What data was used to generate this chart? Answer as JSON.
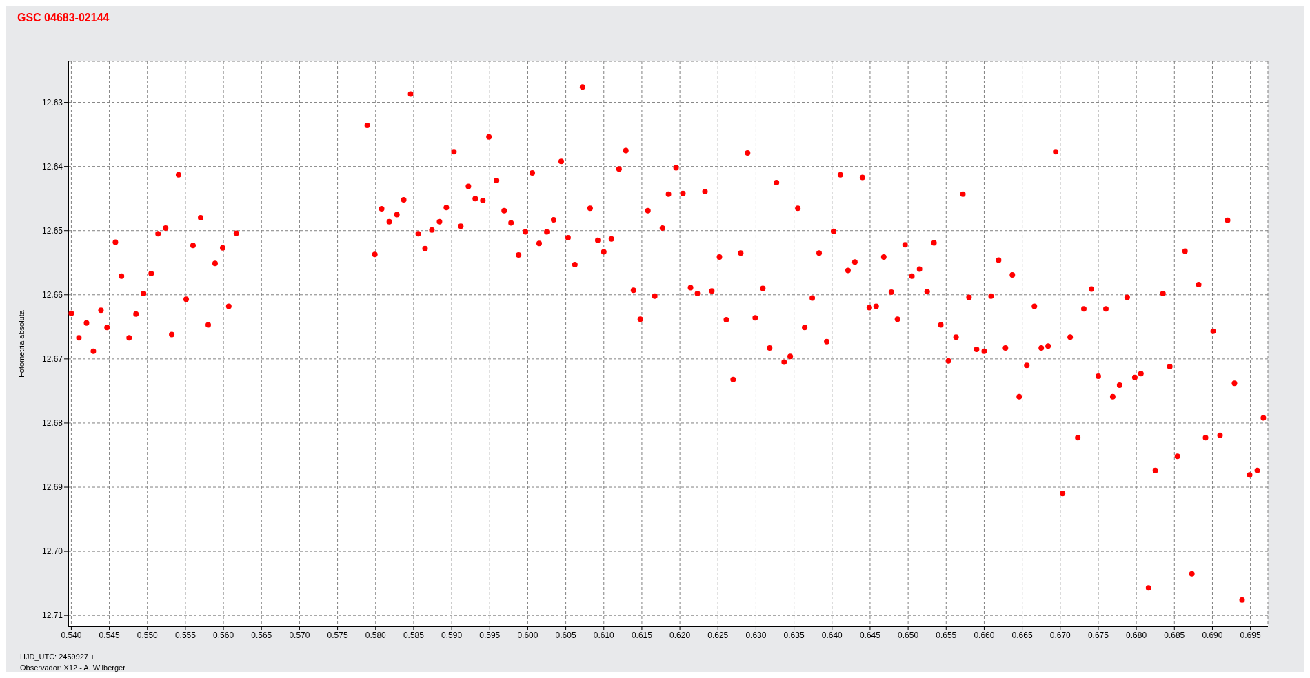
{
  "chart_data": {
    "type": "scatter",
    "title": "GSC 04683-02144",
    "ylabel": "Fotometría absoluta",
    "annotations": [
      "HJD_UTC: 2459927 +",
      "Observador: X12 - A. Wilberger"
    ],
    "x": [
      0.54,
      0.541,
      0.542,
      0.5429,
      0.5439,
      0.5447,
      0.5458,
      0.5466,
      0.5476,
      0.5485,
      0.5495,
      0.5505,
      0.5514,
      0.5524,
      0.5532,
      0.5541,
      0.5551,
      0.556,
      0.557,
      0.558,
      0.5589,
      0.5599,
      0.5607,
      0.5617,
      0.5789,
      0.5799,
      0.5808,
      0.5818,
      0.5828,
      0.5837,
      0.5846,
      0.5856,
      0.5865,
      0.5874,
      0.5884,
      0.5893,
      0.5903,
      0.5912,
      0.5922,
      0.5931,
      0.5941,
      0.5949,
      0.5959,
      0.5969,
      0.5978,
      0.5988,
      0.5997,
      0.6006,
      0.6015,
      0.6025,
      0.6034,
      0.6044,
      0.6053,
      0.6062,
      0.6072,
      0.6082,
      0.6092,
      0.61,
      0.611,
      0.612,
      0.6129,
      0.6139,
      0.6148,
      0.6158,
      0.6167,
      0.6177,
      0.6185,
      0.6195,
      0.6204,
      0.6214,
      0.6223,
      0.6233,
      0.6242,
      0.6252,
      0.6261,
      0.627,
      0.628,
      0.6289,
      0.6299,
      0.6309,
      0.6318,
      0.6327,
      0.6337,
      0.6345,
      0.6355,
      0.6364,
      0.6374,
      0.6383,
      0.6393,
      0.6402,
      0.6411,
      0.6421,
      0.643,
      0.644,
      0.6449,
      0.6458,
      0.6468,
      0.6478,
      0.6486,
      0.6496,
      0.6505,
      0.6515,
      0.6525,
      0.6534,
      0.6543,
      0.6553,
      0.6563,
      0.6572,
      0.658,
      0.659,
      0.66,
      0.6609,
      0.6619,
      0.6628,
      0.6637,
      0.6646,
      0.6656,
      0.6666,
      0.6675,
      0.6684,
      0.6694,
      0.6703,
      0.6713,
      0.6723,
      0.6731,
      0.6741,
      0.675,
      0.676,
      0.6769,
      0.6778,
      0.6788,
      0.6798,
      0.6806,
      0.6816,
      0.6825,
      0.6835,
      0.6844,
      0.6854,
      0.6864,
      0.6873,
      0.6882,
      0.6891,
      0.6901,
      0.691,
      0.692,
      0.6929,
      0.6939,
      0.6949,
      0.6959,
      0.6967
    ],
    "series": [
      {
        "color": "#ff0000",
        "values": [
          12.6629,
          12.6667,
          12.6644,
          12.6688,
          12.6624,
          12.6651,
          12.6518,
          12.6571,
          12.6667,
          12.663,
          12.6598,
          12.6567,
          12.6505,
          12.6496,
          12.6662,
          12.6413,
          12.6607,
          12.6523,
          12.648,
          12.6647,
          12.6551,
          12.6527,
          12.6618,
          12.6504,
          12.6336,
          12.6537,
          12.6466,
          12.6486,
          12.6475,
          12.6452,
          12.6287,
          12.6505,
          12.6528,
          12.6499,
          12.6486,
          12.6464,
          12.6377,
          12.6493,
          12.6431,
          12.645,
          12.6453,
          12.6354,
          12.6422,
          12.6469,
          12.6488,
          12.6538,
          12.6502,
          12.641,
          12.652,
          12.6502,
          12.6483,
          12.6392,
          12.6511,
          12.6553,
          12.6276,
          12.6465,
          12.6515,
          12.6533,
          12.6513,
          12.6404,
          12.6375,
          12.6593,
          12.6638,
          12.6469,
          12.6602,
          12.6496,
          12.6443,
          12.6402,
          12.6442,
          12.6589,
          12.6598,
          12.6439,
          12.6594,
          12.6541,
          12.6639,
          12.6732,
          12.6535,
          12.6379,
          12.6636,
          12.659,
          12.6683,
          12.6425,
          12.6705,
          12.6696,
          12.6465,
          12.6651,
          12.6605,
          12.6535,
          12.6673,
          12.6501,
          12.6413,
          12.6562,
          12.6549,
          12.6417,
          12.662,
          12.6618,
          12.6541,
          12.6596,
          12.6638,
          12.6522,
          12.6571,
          12.656,
          12.6595,
          12.6519,
          12.6647,
          12.6703,
          12.6666,
          12.6443,
          12.6604,
          12.6685,
          12.6688,
          12.6602,
          12.6546,
          12.6683,
          12.6569,
          12.6759,
          12.671,
          12.6618,
          12.6683,
          12.668,
          12.6377,
          12.691,
          12.6666,
          12.6823,
          12.6622,
          12.6591,
          12.6727,
          12.6622,
          12.6759,
          12.6741,
          12.6604,
          12.6729,
          12.6723,
          12.7057,
          12.6874,
          12.6598,
          12.6712,
          12.6852,
          12.6532,
          12.7035,
          12.6584,
          12.6823,
          12.6657,
          12.6819,
          12.6484,
          12.6738,
          12.7076,
          12.6881,
          12.6874,
          12.6792
        ]
      }
    ],
    "xlim": [
      0.5396,
      0.6973
    ],
    "xticks": [
      {
        "value": 0.54,
        "label": "0.540"
      },
      {
        "value": 0.545,
        "label": "0.545"
      },
      {
        "value": 0.55,
        "label": "0.550"
      },
      {
        "value": 0.555,
        "label": "0.555"
      },
      {
        "value": 0.56,
        "label": "0.560"
      },
      {
        "value": 0.565,
        "label": "0.565"
      },
      {
        "value": 0.57,
        "label": "0.570"
      },
      {
        "value": 0.575,
        "label": "0.575"
      },
      {
        "value": 0.58,
        "label": "0.580"
      },
      {
        "value": 0.585,
        "label": "0.585"
      },
      {
        "value": 0.59,
        "label": "0.590"
      },
      {
        "value": 0.595,
        "label": "0.595"
      },
      {
        "value": 0.6,
        "label": "0.600"
      },
      {
        "value": 0.605,
        "label": "0.605"
      },
      {
        "value": 0.61,
        "label": "0.610"
      },
      {
        "value": 0.615,
        "label": "0.615"
      },
      {
        "value": 0.62,
        "label": "0.620"
      },
      {
        "value": 0.625,
        "label": "0.625"
      },
      {
        "value": 0.63,
        "label": "0.630"
      },
      {
        "value": 0.635,
        "label": "0.635"
      },
      {
        "value": 0.64,
        "label": "0.640"
      },
      {
        "value": 0.645,
        "label": "0.645"
      },
      {
        "value": 0.65,
        "label": "0.650"
      },
      {
        "value": 0.655,
        "label": "0.655"
      },
      {
        "value": 0.66,
        "label": "0.660"
      },
      {
        "value": 0.665,
        "label": "0.665"
      },
      {
        "value": 0.67,
        "label": "0.670"
      },
      {
        "value": 0.675,
        "label": "0.675"
      },
      {
        "value": 0.68,
        "label": "0.680"
      },
      {
        "value": 0.685,
        "label": "0.685"
      },
      {
        "value": 0.69,
        "label": "0.690"
      },
      {
        "value": 0.695,
        "label": "0.695"
      }
    ],
    "ylim": [
      12.7117,
      12.6236
    ],
    "yticks": [
      12.63,
      12.64,
      12.65,
      12.66,
      12.67,
      12.68,
      12.69,
      {
        "value": 12.7,
        "label": "12.70"
      },
      12.71
    ],
    "grid": true,
    "marker": "circle",
    "legend": false
  }
}
